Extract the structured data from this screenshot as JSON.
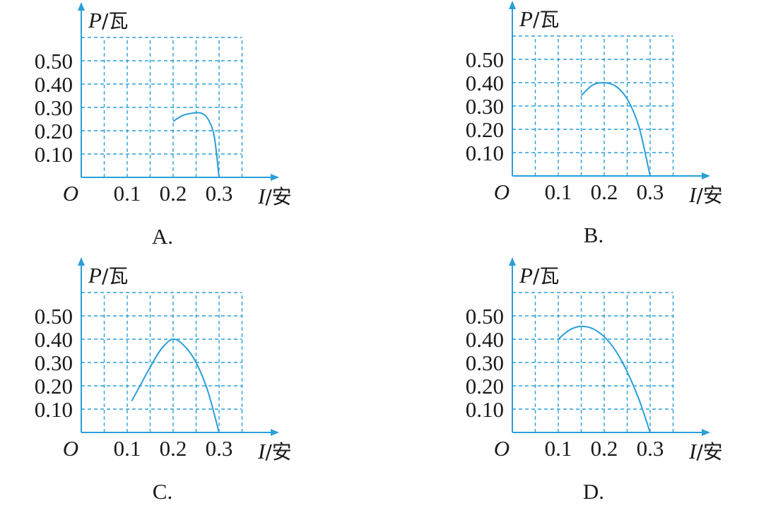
{
  "accent_color": "#2a9fd8",
  "text_color": "#1a1a1a",
  "chart_data": [
    {
      "type": "line",
      "caption": "A.",
      "origin_label": "O",
      "xlabel": "I",
      "xunit": "/安",
      "ylabel": "P",
      "yunit": "/瓦",
      "x_ticks": [
        "0.1",
        "0.2",
        "0.3"
      ],
      "y_ticks": [
        "0.10",
        "0.20",
        "0.30",
        "0.40",
        "0.50"
      ],
      "xlim": [
        0,
        0.35
      ],
      "ylim": [
        0,
        0.6
      ],
      "grid": true,
      "series": [
        {
          "x": [
            0.2,
            0.22,
            0.24,
            0.25,
            0.26,
            0.27,
            0.28,
            0.29,
            0.3
          ],
          "y": [
            0.24,
            0.265,
            0.275,
            0.277,
            0.276,
            0.265,
            0.235,
            0.17,
            0.0
          ]
        }
      ]
    },
    {
      "type": "line",
      "caption": "B.",
      "origin_label": "O",
      "xlabel": "I",
      "xunit": "/安",
      "ylabel": "P",
      "yunit": "/瓦",
      "x_ticks": [
        "0.1",
        "0.2",
        "0.3"
      ],
      "y_ticks": [
        "0.10",
        "0.20",
        "0.30",
        "0.40",
        "0.50"
      ],
      "xlim": [
        0,
        0.35
      ],
      "ylim": [
        0,
        0.6
      ],
      "grid": true,
      "series": [
        {
          "x": [
            0.15,
            0.175,
            0.2,
            0.225,
            0.25,
            0.275,
            0.3
          ],
          "y": [
            0.345,
            0.39,
            0.4,
            0.385,
            0.33,
            0.215,
            0.0
          ]
        }
      ]
    },
    {
      "type": "line",
      "caption": "C.",
      "origin_label": "O",
      "xlabel": "I",
      "xunit": "/安",
      "ylabel": "P",
      "yunit": "/瓦",
      "x_ticks": [
        "0.1",
        "0.2",
        "0.3"
      ],
      "y_ticks": [
        "0.10",
        "0.20",
        "0.30",
        "0.40",
        "0.50"
      ],
      "xlim": [
        0,
        0.35
      ],
      "ylim": [
        0,
        0.6
      ],
      "grid": true,
      "series": [
        {
          "x": [
            0.11,
            0.125,
            0.15,
            0.175,
            0.2,
            0.225,
            0.25,
            0.275,
            0.3
          ],
          "y": [
            0.135,
            0.19,
            0.28,
            0.36,
            0.4,
            0.37,
            0.3,
            0.18,
            0.0
          ]
        }
      ]
    },
    {
      "type": "line",
      "caption": "D.",
      "origin_label": "O",
      "xlabel": "I",
      "xunit": "/安",
      "ylabel": "P",
      "yunit": "/瓦",
      "x_ticks": [
        "0.1",
        "0.2",
        "0.3"
      ],
      "y_ticks": [
        "0.10",
        "0.20",
        "0.30",
        "0.40",
        "0.50"
      ],
      "xlim": [
        0,
        0.35
      ],
      "ylim": [
        0,
        0.6
      ],
      "grid": true,
      "series": [
        {
          "x": [
            0.1,
            0.125,
            0.15,
            0.175,
            0.2,
            0.225,
            0.25,
            0.275,
            0.3
          ],
          "y": [
            0.4,
            0.44,
            0.455,
            0.445,
            0.41,
            0.35,
            0.26,
            0.145,
            0.0
          ]
        }
      ]
    }
  ]
}
